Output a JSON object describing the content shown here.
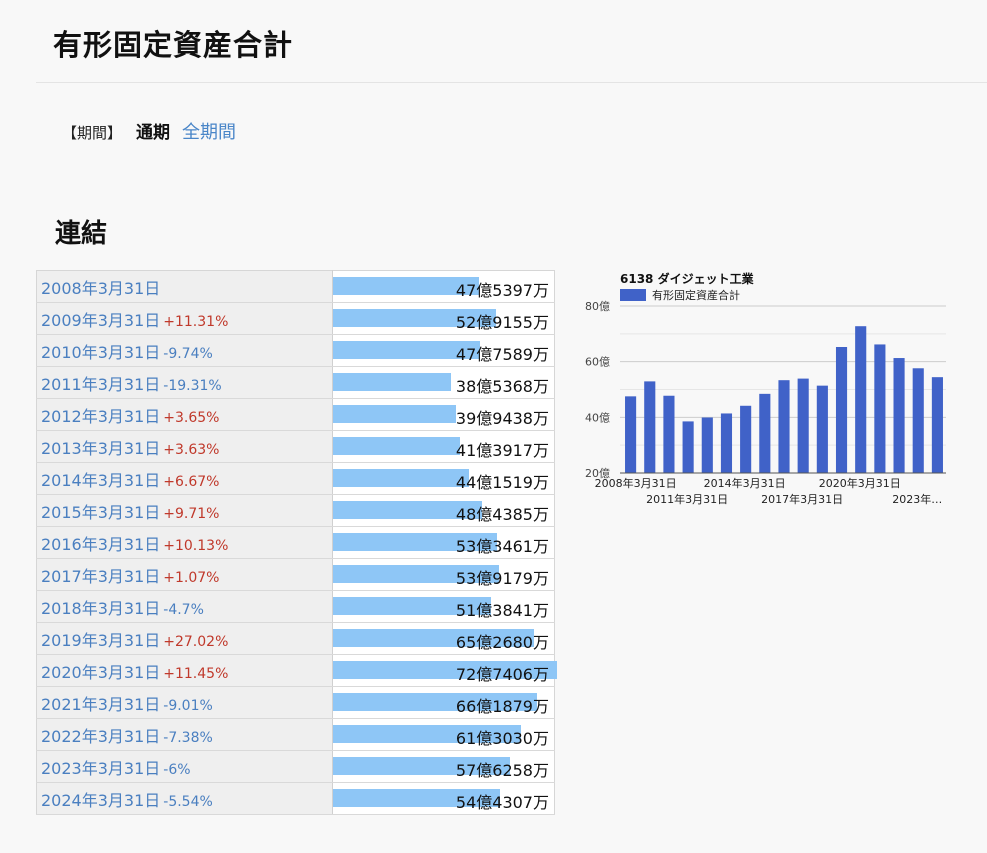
{
  "page": {
    "title": "有形固定資産合計",
    "period_label": "【期間】",
    "period_active": "通期",
    "period_link": "全期間",
    "section": "連結"
  },
  "rows": [
    {
      "date": "2008年3月31日",
      "change": "",
      "value": "47億5397万",
      "amount": 47.5397
    },
    {
      "date": "2009年3月31日",
      "change": "+11.31%",
      "value": "52億9155万",
      "amount": 52.9155
    },
    {
      "date": "2010年3月31日",
      "change": "-9.74%",
      "value": "47億7589万",
      "amount": 47.7589
    },
    {
      "date": "2011年3月31日",
      "change": "-19.31%",
      "value": "38億5368万",
      "amount": 38.5368
    },
    {
      "date": "2012年3月31日",
      "change": "+3.65%",
      "value": "39億9438万",
      "amount": 39.9438
    },
    {
      "date": "2013年3月31日",
      "change": "+3.63%",
      "value": "41億3917万",
      "amount": 41.3917
    },
    {
      "date": "2014年3月31日",
      "change": "+6.67%",
      "value": "44億1519万",
      "amount": 44.1519
    },
    {
      "date": "2015年3月31日",
      "change": "+9.71%",
      "value": "48億4385万",
      "amount": 48.4385
    },
    {
      "date": "2016年3月31日",
      "change": "+10.13%",
      "value": "53億3461万",
      "amount": 53.3461
    },
    {
      "date": "2017年3月31日",
      "change": "+1.07%",
      "value": "53億9179万",
      "amount": 53.9179
    },
    {
      "date": "2018年3月31日",
      "change": "-4.7%",
      "value": "51億3841万",
      "amount": 51.3841
    },
    {
      "date": "2019年3月31日",
      "change": "+27.02%",
      "value": "65億2680万",
      "amount": 65.268
    },
    {
      "date": "2020年3月31日",
      "change": "+11.45%",
      "value": "72億7406万",
      "amount": 72.7406
    },
    {
      "date": "2021年3月31日",
      "change": "-9.01%",
      "value": "66億1879万",
      "amount": 66.1879
    },
    {
      "date": "2022年3月31日",
      "change": "-7.38%",
      "value": "61億3030万",
      "amount": 61.303
    },
    {
      "date": "2023年3月31日",
      "change": "-6%",
      "value": "57億6258万",
      "amount": 57.6258
    },
    {
      "date": "2024年3月31日",
      "change": "-5.54%",
      "value": "54億4307万",
      "amount": 54.4307
    }
  ],
  "colors": {
    "bar": "#8ec6f6",
    "chart_bar": "#4062c8",
    "positive": "#c0392b",
    "negative": "#4a7fc0"
  },
  "chart_data": {
    "type": "bar",
    "title": "6138 ダイジェット工業",
    "legend": "有形固定資産合計",
    "legend_position": "top-left",
    "categories": [
      "2008年3月31日",
      "2009年3月31日",
      "2010年3月31日",
      "2011年3月31日",
      "2012年3月31日",
      "2013年3月31日",
      "2014年3月31日",
      "2015年3月31日",
      "2016年3月31日",
      "2017年3月31日",
      "2018年3月31日",
      "2019年3月31日",
      "2020年3月31日",
      "2021年3月31日",
      "2022年3月31日",
      "2023年3月31日",
      "2024年3月31日"
    ],
    "series": [
      {
        "name": "有形固定資産合計",
        "values": [
          47.5397,
          52.9155,
          47.7589,
          38.5368,
          39.9438,
          41.3917,
          44.1519,
          48.4385,
          53.3461,
          53.9179,
          51.3841,
          65.268,
          72.7406,
          66.1879,
          61.303,
          57.6258,
          54.4307
        ]
      }
    ],
    "ylim": [
      20,
      80
    ],
    "y_ticks": [
      {
        "v": 20,
        "label": "20億"
      },
      {
        "v": 40,
        "label": "40億"
      },
      {
        "v": 60,
        "label": "60億"
      },
      {
        "v": 80,
        "label": "80億"
      }
    ],
    "x_tick_labels": [
      {
        "index": 0,
        "label": "2008年3月31日",
        "row": 1
      },
      {
        "index": 3,
        "label": "2011年3月31日",
        "row": 2
      },
      {
        "index": 6,
        "label": "2014年3月31日",
        "row": 1
      },
      {
        "index": 9,
        "label": "2017年3月31日",
        "row": 2
      },
      {
        "index": 12,
        "label": "2020年3月31日",
        "row": 1
      },
      {
        "index": 15,
        "label": "2023年…",
        "row": 2
      }
    ],
    "grid": true
  }
}
